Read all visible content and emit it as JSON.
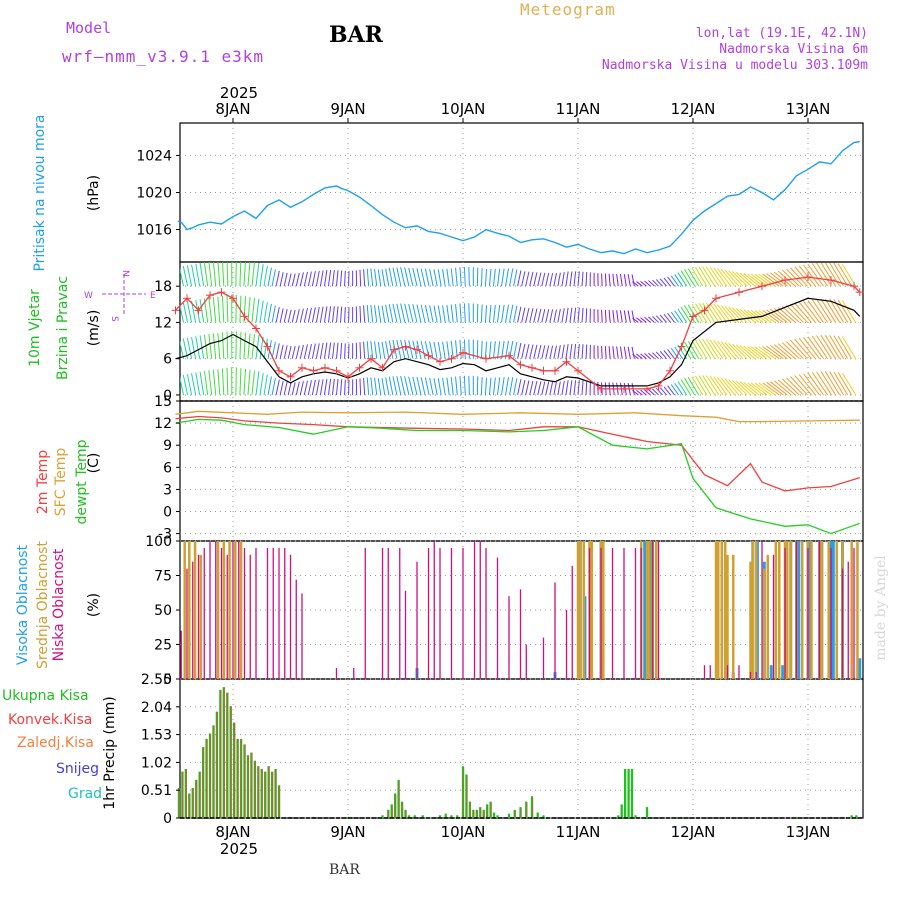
{
  "header": {
    "model_label": "Model",
    "model_name": "wrf—nmm_v3.9.1 e3km",
    "station_title": "BAR",
    "meteogram_label": "Meteogram",
    "location": "lon,lat (19.1E, 42.1N)",
    "elevation": "Nadmorska Visina 6m",
    "model_elevation": "Nadmorska Visina u modelu 303.109m",
    "watermark": "made by Angel",
    "footer_station": "BAR"
  },
  "colors": {
    "pressure": "#1ea0f0",
    "temp2m": "#f04040",
    "sfc": "#e0a030",
    "dewpt": "#20d020",
    "high_cloud": "#20a0f0",
    "mid_cloud": "#d0a030",
    "low_cloud": "#d01080",
    "total_rain": "#20c020",
    "conv_rain": "#f04040",
    "freezing": "#f08040",
    "snow": "#4040e0",
    "hail": "#20c0c0",
    "purple": "#b040e0"
  },
  "time_axis": {
    "top_year": "2025",
    "bottom_year": "2025",
    "days": [
      "8JAN",
      "9JAN",
      "10JAN",
      "11JAN",
      "12JAN",
      "13JAN"
    ]
  },
  "chart_data": [
    {
      "type": "line",
      "id": "pressure",
      "ylabel_left": "Pritisak na nivou mora",
      "unit": "(hPa)",
      "yticks": [
        1016,
        1020,
        1024
      ],
      "ylim": [
        1012.5,
        1027.5
      ],
      "xlim_days": [
        -0.5,
        5.45
      ],
      "x_days": [
        -0.48,
        -0.45,
        -0.4,
        -0.35,
        -0.3,
        -0.2,
        -0.1,
        0.0,
        0.1,
        0.2,
        0.3,
        0.4,
        0.5,
        0.6,
        0.7,
        0.8,
        0.9,
        0.95,
        1.0,
        1.1,
        1.2,
        1.3,
        1.4,
        1.5,
        1.6,
        1.7,
        1.8,
        1.9,
        2.0,
        2.1,
        2.2,
        2.3,
        2.4,
        2.5,
        2.6,
        2.7,
        2.8,
        2.9,
        3.0,
        3.1,
        3.2,
        3.3,
        3.4,
        3.5,
        3.6,
        3.7,
        3.8,
        3.9,
        4.0,
        4.1,
        4.2,
        4.3,
        4.4,
        4.5,
        4.6,
        4.7,
        4.8,
        4.9,
        5.0,
        5.1,
        5.2,
        5.3,
        5.4,
        5.45
      ],
      "values": [
        1016.9,
        1016.8,
        1016.0,
        1016.2,
        1016.5,
        1016.8,
        1016.6,
        1017.4,
        1018.0,
        1017.2,
        1018.6,
        1019.2,
        1018.4,
        1019.0,
        1019.8,
        1020.5,
        1020.7,
        1020.4,
        1020.2,
        1019.5,
        1018.6,
        1017.6,
        1016.8,
        1016.2,
        1016.4,
        1015.8,
        1015.6,
        1015.2,
        1014.8,
        1015.2,
        1016.0,
        1015.6,
        1015.3,
        1014.6,
        1014.9,
        1015.0,
        1014.6,
        1014.1,
        1014.4,
        1013.9,
        1013.5,
        1013.7,
        1013.4,
        1013.9,
        1013.5,
        1013.8,
        1014.2,
        1015.5,
        1017.0,
        1018.0,
        1018.8,
        1019.6,
        1019.8,
        1020.6,
        1020.0,
        1019.2,
        1020.3,
        1021.8,
        1022.5,
        1023.3,
        1023.1,
        1024.5,
        1025.4,
        1025.5
      ]
    },
    {
      "type": "line",
      "id": "wind",
      "ylabel_left": "10m Vjetar",
      "ylabel_left2": "Brzina i Pravac",
      "unit": "(m/s)",
      "compass": [
        "N",
        "W",
        "E",
        "S"
      ],
      "yticks": [
        0,
        6,
        12,
        18
      ],
      "ylim": [
        -1,
        22
      ],
      "xlim_days": [
        -0.5,
        5.45
      ],
      "speed_series": {
        "name": "speed",
        "x_days": [
          -0.5,
          -0.4,
          -0.3,
          -0.2,
          -0.1,
          0.0,
          0.1,
          0.2,
          0.3,
          0.4,
          0.5,
          0.6,
          0.7,
          0.8,
          0.9,
          1.0,
          1.1,
          1.2,
          1.3,
          1.4,
          1.5,
          1.6,
          1.7,
          1.8,
          1.9,
          2.0,
          2.1,
          2.2,
          2.3,
          2.4,
          2.5,
          2.6,
          2.7,
          2.8,
          2.9,
          3.0,
          3.2,
          3.4,
          3.6,
          3.7,
          3.8,
          3.9,
          4.0,
          4.2,
          4.4,
          4.6,
          4.8,
          5.0,
          5.2,
          5.4,
          5.45
        ],
        "values": [
          6.0,
          6.5,
          7.5,
          8.5,
          9.0,
          10.0,
          9.0,
          8.0,
          5.5,
          3.0,
          2.0,
          3.0,
          3.5,
          3.8,
          3.5,
          2.8,
          3.5,
          4.5,
          4.0,
          5.5,
          6.0,
          5.5,
          5.0,
          4.2,
          4.5,
          5.2,
          5.0,
          4.0,
          4.5,
          5.0,
          3.5,
          3.0,
          2.5,
          2.2,
          3.0,
          2.8,
          1.5,
          1.5,
          1.5,
          2.0,
          3.0,
          5.0,
          9.0,
          12.0,
          12.5,
          13.0,
          14.5,
          16.0,
          15.5,
          14.0,
          13.0
        ]
      },
      "gust_series": {
        "name": "gust",
        "x_days": [
          -0.5,
          -0.4,
          -0.3,
          -0.2,
          -0.1,
          0.0,
          0.1,
          0.2,
          0.3,
          0.4,
          0.5,
          0.6,
          0.7,
          0.8,
          0.9,
          1.0,
          1.1,
          1.2,
          1.3,
          1.4,
          1.5,
          1.6,
          1.7,
          1.8,
          1.9,
          2.0,
          2.2,
          2.4,
          2.5,
          2.6,
          2.7,
          2.8,
          2.9,
          3.0,
          3.2,
          3.4,
          3.6,
          3.7,
          3.8,
          3.9,
          4.0,
          4.1,
          4.2,
          4.4,
          4.6,
          4.8,
          5.0,
          5.2,
          5.4,
          5.45
        ],
        "values": [
          14.0,
          16.0,
          14.0,
          16.5,
          17.0,
          16.0,
          13.0,
          11.0,
          8.0,
          4.0,
          3.0,
          4.5,
          4.0,
          4.5,
          4.0,
          3.0,
          4.5,
          6.0,
          4.5,
          7.5,
          8.0,
          7.5,
          6.5,
          5.5,
          6.0,
          7.0,
          6.0,
          6.5,
          5.0,
          4.5,
          4.0,
          4.0,
          5.5,
          4.0,
          1.0,
          1.0,
          1.0,
          1.5,
          4.0,
          8.0,
          13.0,
          14.0,
          16.0,
          17.0,
          18.0,
          19.0,
          19.5,
          19.0,
          18.0,
          17.0
        ]
      }
    },
    {
      "type": "line",
      "id": "temperature",
      "ylabel_left": "2m Temp",
      "ylabel_left2": "SFC Temp",
      "ylabel_left3": "dewpt Temp",
      "unit": "(C)",
      "yticks": [
        -3,
        0,
        3,
        6,
        9,
        12,
        15
      ],
      "ylim": [
        -4,
        15
      ],
      "xlim_days": [
        -0.5,
        5.45
      ],
      "series": [
        {
          "name": "SFC Temp",
          "x_days": [
            -0.5,
            -0.3,
            0.0,
            0.3,
            0.6,
            1.0,
            1.5,
            2.0,
            2.5,
            3.0,
            3.5,
            3.9,
            4.2,
            4.4,
            4.6,
            5.0,
            5.45
          ],
          "values": [
            13.2,
            13.6,
            13.4,
            13.2,
            13.5,
            13.4,
            13.5,
            13.2,
            13.4,
            13.2,
            13.4,
            13.0,
            12.8,
            12.2,
            12.2,
            12.3,
            12.4
          ]
        },
        {
          "name": "2m Temp",
          "x_days": [
            -0.5,
            -0.3,
            -0.1,
            0.1,
            0.4,
            0.7,
            1.0,
            1.3,
            1.6,
            2.0,
            2.4,
            2.7,
            3.0,
            3.3,
            3.6,
            3.9,
            4.1,
            4.3,
            4.5,
            4.6,
            4.8,
            5.0,
            5.2,
            5.45
          ],
          "values": [
            12.6,
            12.9,
            12.7,
            12.3,
            12.0,
            11.8,
            11.5,
            11.4,
            11.3,
            11.2,
            11.0,
            11.5,
            11.5,
            10.5,
            9.5,
            9.0,
            5.0,
            3.5,
            6.5,
            4.0,
            2.8,
            3.2,
            3.4,
            4.6
          ]
        },
        {
          "name": "dewpt Temp",
          "x_days": [
            -0.5,
            -0.3,
            -0.1,
            0.1,
            0.4,
            0.7,
            1.0,
            1.3,
            1.6,
            2.0,
            2.4,
            2.7,
            3.0,
            3.3,
            3.6,
            3.9,
            4.0,
            4.2,
            4.5,
            4.8,
            5.0,
            5.2,
            5.45
          ],
          "values": [
            12.0,
            12.5,
            12.4,
            11.8,
            11.4,
            10.5,
            11.5,
            11.3,
            11.0,
            11.0,
            10.8,
            11.0,
            11.5,
            9.0,
            8.5,
            9.2,
            4.5,
            0.5,
            -1.0,
            -2.0,
            -1.8,
            -3.0,
            -1.6
          ]
        }
      ]
    },
    {
      "type": "bar",
      "id": "cloud",
      "ylabel_left": "Visoka Oblacnost",
      "ylabel_left2": "Srednja Oblacnost",
      "ylabel_left3": "Niska Oblacnost",
      "unit": "(%)",
      "yticks": [
        0,
        25,
        50,
        75,
        100
      ],
      "ylim": [
        0,
        100
      ],
      "xlim_days": [
        -0.5,
        5.45
      ],
      "low_x_days": [
        -0.45,
        -0.4,
        -0.35,
        -0.3,
        -0.25,
        -0.2,
        -0.15,
        -0.1,
        -0.05,
        0.0,
        0.05,
        0.1,
        0.15,
        0.2,
        0.3,
        0.35,
        0.4,
        0.45,
        0.5,
        0.55,
        0.6,
        0.9,
        1.05,
        1.15,
        1.3,
        1.35,
        1.45,
        1.5,
        1.6,
        1.7,
        1.75,
        1.8,
        1.9,
        2.0,
        2.1,
        2.15,
        2.2,
        2.3,
        2.4,
        2.5,
        2.55,
        2.7,
        2.8,
        2.9,
        2.95,
        3.1,
        3.2,
        3.3,
        3.4,
        3.5,
        3.55,
        3.65,
        3.7,
        4.1,
        4.15,
        4.3,
        4.4,
        4.5,
        4.55,
        4.6,
        4.7,
        4.8,
        4.9,
        5.0,
        5.1,
        5.2,
        5.3,
        5.35,
        5.4
      ],
      "low_values": [
        35,
        80,
        85,
        90,
        95,
        100,
        100,
        95,
        90,
        100,
        100,
        95,
        90,
        95,
        95,
        95,
        95,
        95,
        90,
        72,
        62,
        8,
        8,
        95,
        95,
        95,
        95,
        64,
        85,
        95,
        100,
        95,
        95,
        95,
        100,
        100,
        95,
        88,
        60,
        65,
        25,
        30,
        70,
        50,
        82,
        95,
        95,
        95,
        95,
        95,
        95,
        100,
        100,
        10,
        10,
        10,
        10,
        5,
        5,
        100,
        90,
        95,
        100,
        95,
        100,
        95,
        80,
        85,
        95
      ],
      "mid_x_days": [
        -0.42,
        -0.38,
        -0.33,
        -0.28,
        -0.13,
        -0.08,
        -0.03,
        0.02,
        0.07,
        3.0,
        3.02,
        3.05,
        3.1,
        3.12,
        3.2,
        3.22,
        3.55,
        3.6,
        3.62,
        3.65,
        3.68,
        4.2,
        4.22,
        4.25,
        4.28,
        4.3,
        4.35,
        4.5,
        4.52,
        4.55,
        4.62,
        4.65,
        4.72,
        4.75,
        4.8,
        4.82,
        4.85,
        4.9,
        4.95,
        5.0,
        5.03,
        5.1,
        5.12,
        5.18,
        5.25,
        5.3,
        5.38,
        5.43
      ],
      "mid_values": [
        100,
        100,
        100,
        90,
        100,
        100,
        100,
        100,
        100,
        100,
        100,
        100,
        100,
        100,
        100,
        100,
        100,
        100,
        100,
        100,
        100,
        100,
        100,
        100,
        100,
        90,
        90,
        85,
        100,
        100,
        80,
        90,
        100,
        100,
        100,
        100,
        100,
        100,
        100,
        100,
        100,
        100,
        100,
        100,
        100,
        100,
        100,
        100
      ],
      "high_x_days": [
        1.6,
        2.8,
        3.02,
        3.06,
        3.2,
        3.58,
        3.64,
        4.35,
        4.52,
        4.56,
        4.62,
        4.68,
        4.78,
        4.85,
        4.9,
        4.92,
        5.0,
        5.02,
        5.1,
        5.12,
        5.2,
        5.22,
        5.3,
        5.45
      ],
      "high_values": [
        8,
        5,
        100,
        60,
        100,
        100,
        100,
        5,
        100,
        100,
        85,
        10,
        10,
        100,
        100,
        100,
        100,
        100,
        100,
        100,
        100,
        100,
        100,
        15
      ]
    },
    {
      "type": "bar",
      "id": "precip",
      "ylabel_left": "1hr Precip (mm)",
      "legend": [
        "Ukupna Kisa",
        "Konvek.Kisa",
        "Zaledj.Kisa",
        "Snijeg",
        "Grad"
      ],
      "yticks": [
        0,
        0.51,
        1.02,
        1.53,
        2.04,
        2.55
      ],
      "ytick_labels": [
        "0",
        "0.51",
        "1.02",
        "1.53",
        "2.04",
        "2.55"
      ],
      "ylim": [
        0,
        2.55
      ],
      "xlim_days": [
        -0.5,
        5.45
      ],
      "bar_width_days": 0.02,
      "x_days": [
        -0.47,
        -0.44,
        -0.41,
        -0.38,
        -0.35,
        -0.32,
        -0.29,
        -0.26,
        -0.23,
        -0.2,
        -0.17,
        -0.14,
        -0.11,
        -0.08,
        -0.05,
        -0.02,
        0.01,
        0.04,
        0.07,
        0.1,
        0.13,
        0.16,
        0.19,
        0.22,
        0.25,
        0.28,
        0.31,
        0.34,
        0.37,
        0.4,
        0.5,
        0.7,
        1.0,
        1.3,
        1.35,
        1.38,
        1.41,
        1.44,
        1.47,
        1.5,
        1.53,
        1.58,
        1.65,
        1.8,
        1.85,
        1.9,
        1.95,
        2.0,
        2.03,
        2.06,
        2.09,
        2.12,
        2.15,
        2.18,
        2.21,
        2.24,
        2.27,
        2.3,
        2.4,
        2.45,
        2.5,
        2.55,
        2.6,
        2.65,
        2.7,
        3.35,
        3.38,
        3.41,
        3.44,
        3.47,
        3.5,
        3.6,
        3.9,
        4.9,
        5.2,
        5.3,
        5.38,
        5.42
      ],
      "values": [
        0.55,
        0.85,
        0.9,
        0.45,
        0.55,
        0.7,
        0.85,
        1.3,
        1.45,
        1.55,
        1.7,
        1.95,
        2.35,
        2.4,
        2.3,
        2.05,
        1.75,
        1.45,
        1.45,
        1.35,
        1.15,
        1.2,
        1.05,
        0.95,
        0.9,
        0.85,
        0.95,
        0.85,
        0.9,
        0.6,
        0.02,
        0.02,
        0.02,
        0.05,
        0.15,
        0.25,
        0.45,
        0.7,
        0.3,
        0.15,
        0.05,
        0.05,
        0.05,
        0.05,
        0.08,
        0.05,
        0.05,
        0.95,
        0.8,
        0.3,
        0.15,
        0.15,
        0.2,
        0.15,
        0.25,
        0.3,
        0.1,
        0.05,
        0.08,
        0.15,
        0.2,
        0.3,
        0.4,
        0.1,
        0.05,
        0.05,
        0.25,
        0.9,
        0.9,
        0.9,
        0.05,
        0.2,
        0.02,
        0.02,
        0.02,
        0.02,
        0.05,
        0.05
      ]
    }
  ]
}
